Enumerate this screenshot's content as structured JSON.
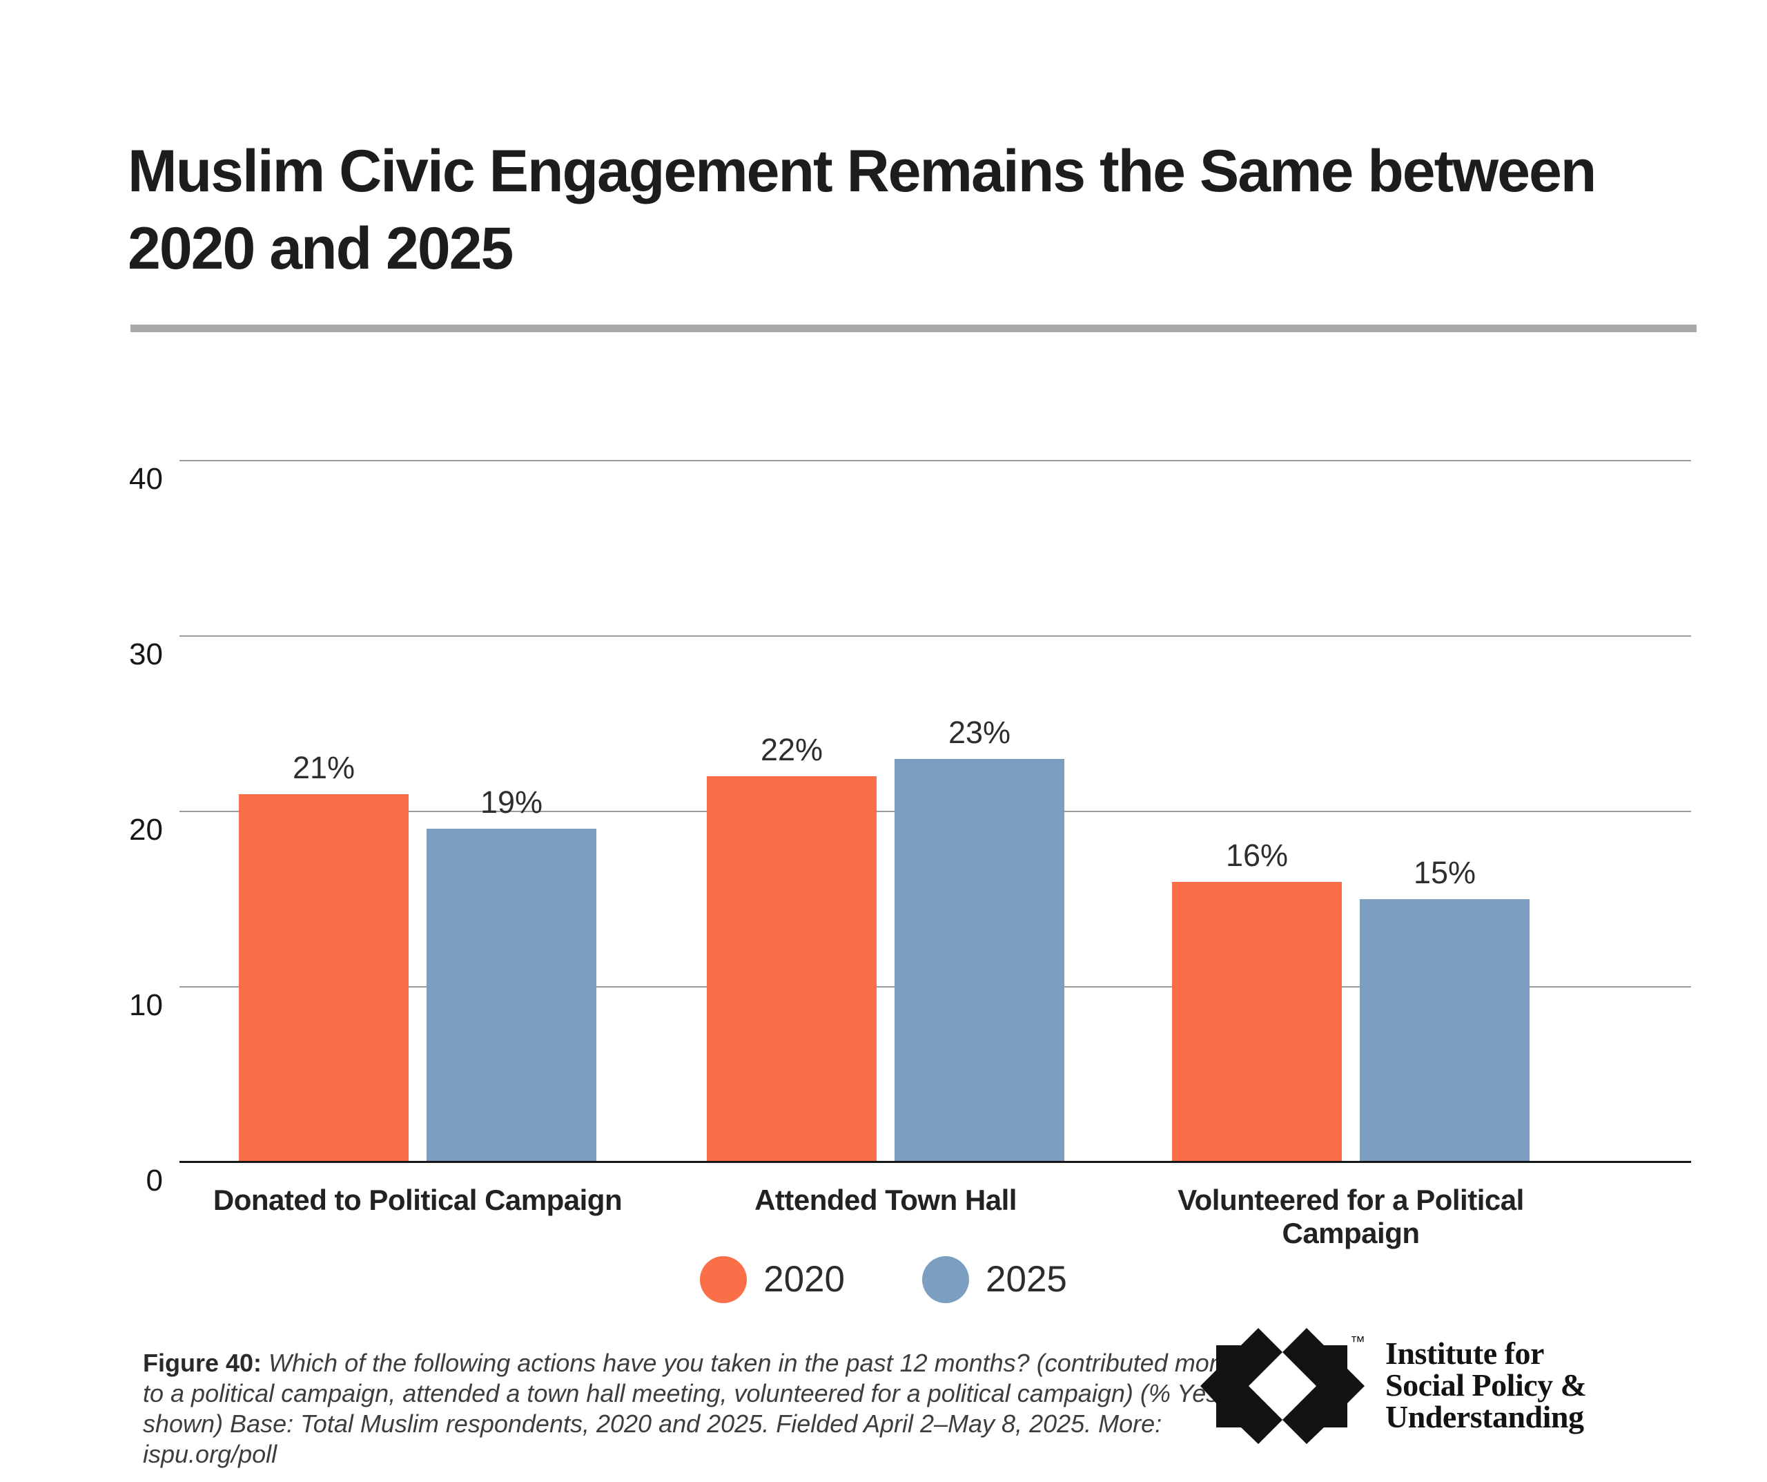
{
  "title": {
    "lines": [
      "Muslim Civic Engagement Remains the Same between",
      "2020 and 2025"
    ]
  },
  "chart_data": {
    "type": "bar",
    "categories": [
      "Donated to Political Campaign",
      "Attended Town Hall",
      "Volunteered for a Political Campaign"
    ],
    "series": [
      {
        "name": "2020",
        "color": "#FA6F47",
        "values": [
          21,
          22,
          16
        ]
      },
      {
        "name": "2025",
        "color": "#7C9FC1",
        "values": [
          19,
          23,
          15
        ]
      }
    ],
    "value_labels": [
      [
        "21%",
        "22%",
        "16%"
      ],
      [
        "19%",
        "23%",
        "15%"
      ]
    ],
    "value_suffix": "%",
    "y_ticks": [
      0,
      10,
      20,
      30,
      40
    ],
    "ylim": [
      0,
      40
    ],
    "grid": true,
    "legend_position": "bottom",
    "gridline_color": "#9c9c9c",
    "axis_color": "#161616"
  },
  "caption": {
    "prefix": "Figure 40:",
    "lines": [
      "Which of the following actions have you taken in the past 12 months? (contributed money",
      "to a political campaign, attended a town hall meeting, volunteered for a political campaign) (% Yes",
      "shown) Base: Total Muslim respondents, 2020 and 2025. Fielded April 2–May 8, 2025. More:",
      "ispu.org/poll"
    ]
  },
  "logo": {
    "mark": "eight-point-star-logo",
    "trademark": "™",
    "text_lines": [
      "Institute for",
      "Social Policy &",
      "Understanding"
    ],
    "color": "#131313"
  }
}
